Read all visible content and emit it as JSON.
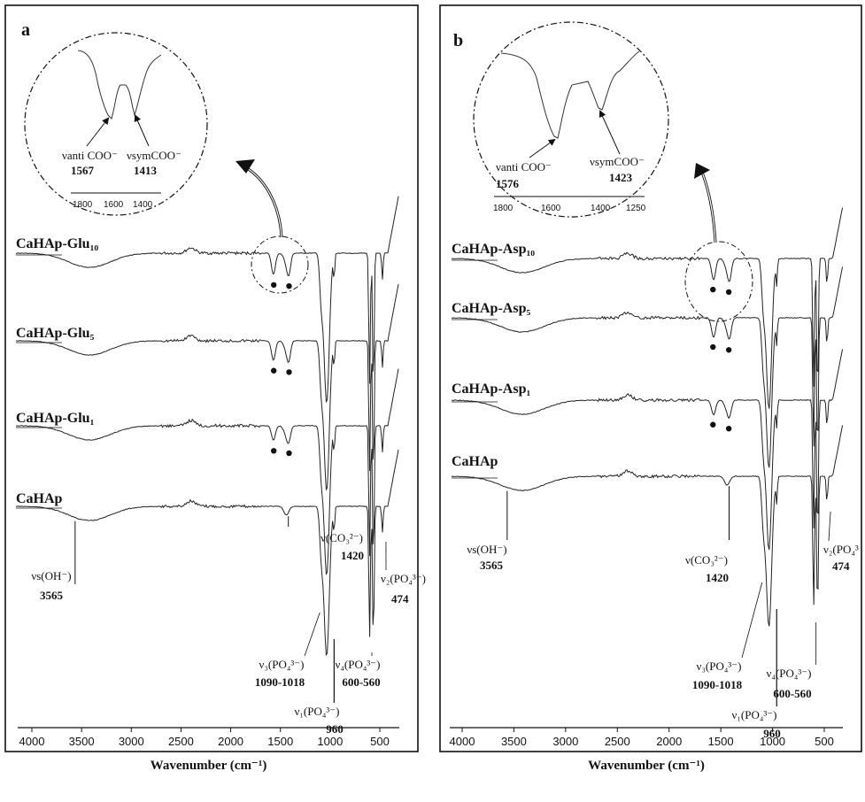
{
  "chart_data": [
    {
      "type": "line",
      "panel": "a",
      "xlabel": "Wavenumber (cm⁻¹)",
      "xlim": [
        4000,
        400
      ],
      "x_ticks": [
        "4000",
        "3500",
        "3000",
        "2500",
        "2000",
        "1500",
        "1000",
        "500"
      ],
      "series": [
        {
          "name": "CaHAp-Glu₁₀",
          "carboxylate_marks": [
            1567,
            1413
          ]
        },
        {
          "name": "CaHAp-Glu₅",
          "carboxylate_marks": [
            1567,
            1413
          ]
        },
        {
          "name": "CaHAp-Glu₁",
          "carboxylate_marks": [
            1567,
            1413
          ]
        },
        {
          "name": "CaHAp",
          "carboxylate_marks": []
        }
      ],
      "annotations": [
        {
          "label": "νs(OH⁻)",
          "value": "3565",
          "x": 3565
        },
        {
          "label": "ν(CO₃²⁻)",
          "value": "1420",
          "x": 1420
        },
        {
          "label": "ν₃(PO₄³⁻)",
          "value": "1090-1018",
          "x": 1050
        },
        {
          "label": "ν₁(PO₄³⁻)",
          "value": "960",
          "x": 960
        },
        {
          "label": "ν₄(PO₄³⁻)",
          "value": "600-560",
          "x": 580
        },
        {
          "label": "ν₂(PO₄³⁻)",
          "value": "474",
          "x": 474
        }
      ],
      "inset": {
        "x_ticks": [
          "1800",
          "1600",
          "1400"
        ],
        "peaks": [
          {
            "label": "νanti COO⁻",
            "value": "1567"
          },
          {
            "label": "νsymCOO⁻",
            "value": "1413"
          }
        ]
      }
    },
    {
      "type": "line",
      "panel": "b",
      "xlabel": "Wavenumber (cm⁻¹)",
      "xlim": [
        4000,
        400
      ],
      "x_ticks": [
        "4000",
        "3500",
        "3000",
        "2500",
        "2000",
        "1500",
        "1000",
        "500"
      ],
      "series": [
        {
          "name": "CaHAp-Asp₁₀",
          "carboxylate_marks": [
            1576,
            1423
          ]
        },
        {
          "name": "CaHAp-Asp₅",
          "carboxylate_marks": [
            1576,
            1423
          ]
        },
        {
          "name": "CaHAp-Asp₁",
          "carboxylate_marks": [
            1576,
            1423
          ]
        },
        {
          "name": "CaHAp",
          "carboxylate_marks": []
        }
      ],
      "annotations": [
        {
          "label": "νs(OH⁻)",
          "value": "3565",
          "x": 3565
        },
        {
          "label": "ν(CO₃²⁻)",
          "value": "1420",
          "x": 1420
        },
        {
          "label": "ν₃(PO₄³⁻)",
          "value": "1090-1018",
          "x": 1050
        },
        {
          "label": "ν₁(PO₄³⁻)",
          "value": "960",
          "x": 960
        },
        {
          "label": "ν₄(PO₄³⁻)",
          "value": "600-560",
          "x": 580
        },
        {
          "label": "ν₂(PO₄³",
          "value": "474",
          "x": 474
        }
      ],
      "inset": {
        "x_ticks": [
          "1800",
          "1600",
          "1400",
          "1250"
        ],
        "peaks": [
          {
            "label": "νanti COO⁻",
            "value": "1576"
          },
          {
            "label": "νsymCOO⁻",
            "value": "1423"
          }
        ]
      }
    }
  ]
}
